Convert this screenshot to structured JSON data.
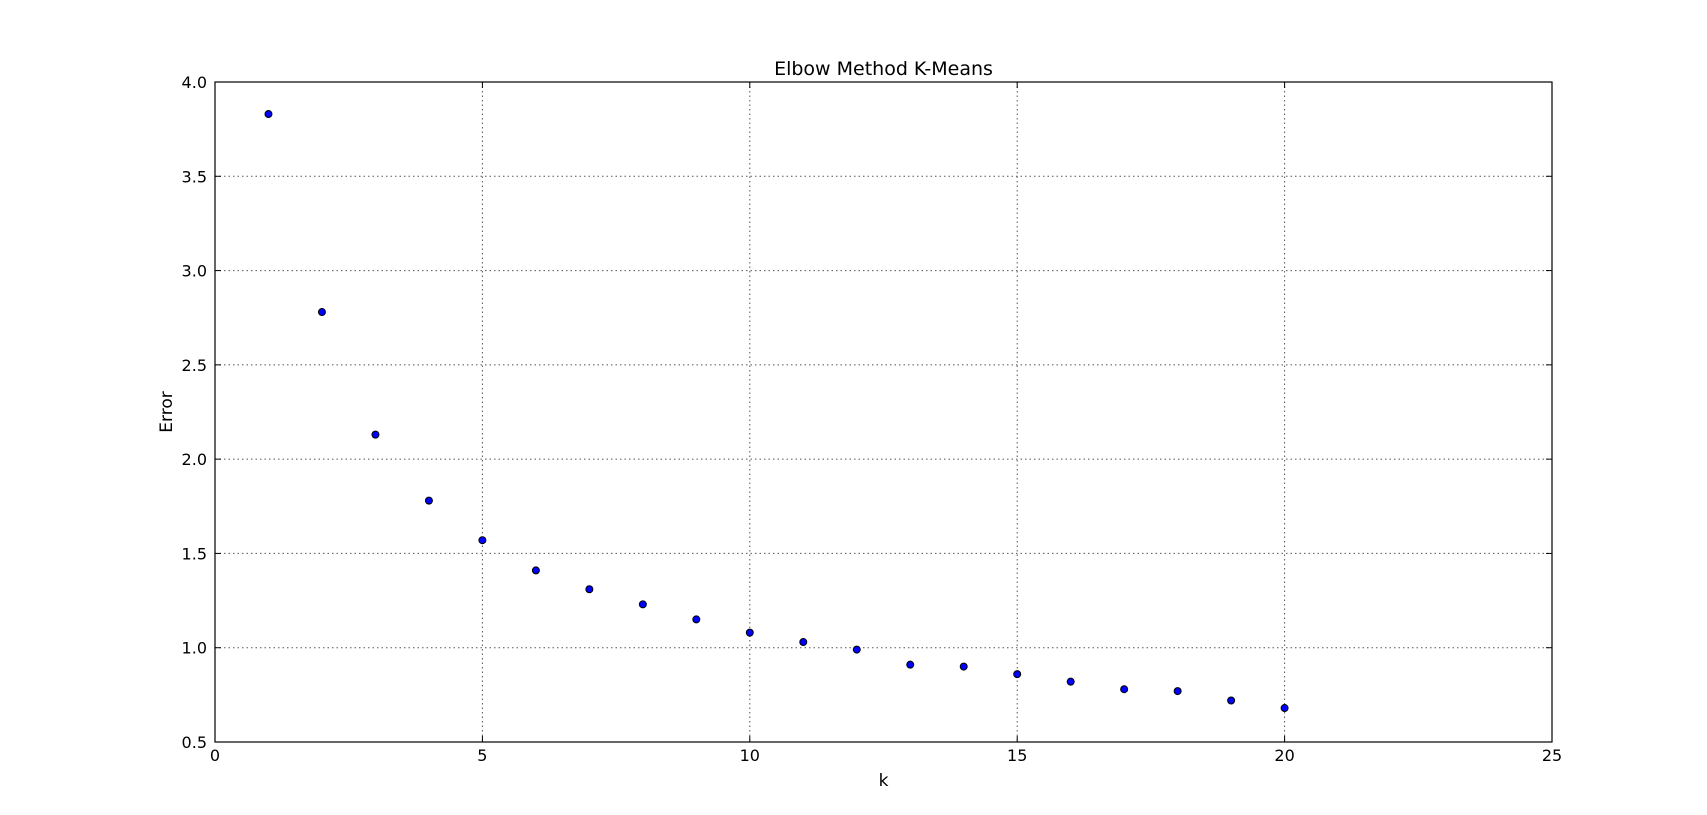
{
  "chart_data": {
    "type": "scatter",
    "title": "Elbow Method K-Means",
    "xlabel": "k",
    "ylabel": "Error",
    "xlim": [
      0,
      25
    ],
    "ylim": [
      0.5,
      4.0
    ],
    "xticks": [
      0,
      5,
      10,
      15,
      20,
      25
    ],
    "yticks": [
      0.5,
      1.0,
      1.5,
      2.0,
      2.5,
      3.0,
      3.5,
      4.0
    ],
    "xtick_labels": [
      "0",
      "5",
      "10",
      "15",
      "20",
      "25"
    ],
    "ytick_labels": [
      "0.5",
      "1.0",
      "1.5",
      "2.0",
      "2.5",
      "3.0",
      "3.5",
      "4.0"
    ],
    "grid": true,
    "marker_color": "#0000ff",
    "series": [
      {
        "x": [
          1,
          2,
          3,
          4,
          5,
          6,
          7,
          8,
          9,
          10,
          11,
          12,
          13,
          14,
          15,
          16,
          17,
          18,
          19,
          20
        ],
        "y": [
          3.83,
          2.78,
          2.13,
          1.78,
          1.57,
          1.41,
          1.31,
          1.23,
          1.15,
          1.08,
          1.03,
          0.99,
          0.91,
          0.9,
          0.86,
          0.82,
          0.78,
          0.77,
          0.72,
          0.68
        ]
      }
    ]
  }
}
